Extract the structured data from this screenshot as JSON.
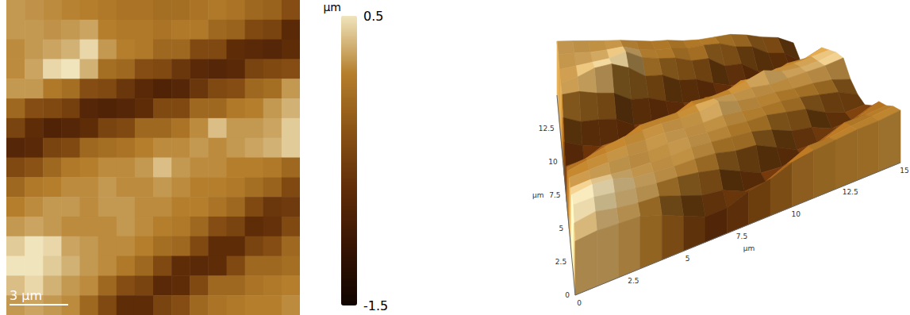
{
  "chart_data": [
    {
      "type": "heatmap",
      "tick_labels": false,
      "xlim": [
        0,
        15
      ],
      "ylim": [
        0,
        15
      ],
      "scale_bar": {
        "value": 3,
        "label": "3 μm"
      },
      "colorbar": {
        "title": "μm",
        "range": [
          -1.5,
          0.5
        ],
        "ticks": [
          0.5,
          -1.5
        ],
        "colors": [
          "#100400",
          "#361403",
          "#5f2c08",
          "#8a5214",
          "#b47e2c",
          "#f0e4bc"
        ]
      },
      "cells": [
        [
          0.2,
          0.18,
          0.15,
          0.12,
          0.1,
          0.05,
          0.0,
          0.0,
          -0.05,
          -0.05,
          0.0,
          0.05,
          0.0,
          -0.1,
          -0.15,
          -0.35
        ],
        [
          0.2,
          0.2,
          0.18,
          0.2,
          0.25,
          0.1,
          0.05,
          0.05,
          0.0,
          0.05,
          0.05,
          -0.1,
          -0.15,
          -0.4,
          -0.45,
          -0.75
        ],
        [
          0.15,
          0.2,
          0.25,
          0.3,
          0.45,
          0.2,
          0.1,
          0.05,
          -0.1,
          -0.1,
          -0.4,
          -0.4,
          -0.7,
          -0.75,
          -0.8,
          -0.7
        ],
        [
          0.15,
          0.25,
          0.45,
          0.5,
          0.3,
          -0.05,
          -0.1,
          -0.35,
          -0.4,
          -0.6,
          -0.75,
          -0.8,
          -0.75,
          -0.45,
          -0.4,
          -0.35
        ],
        [
          0.2,
          0.2,
          0.05,
          -0.05,
          -0.35,
          -0.4,
          -0.6,
          -0.75,
          -0.85,
          -0.8,
          -0.6,
          -0.4,
          -0.35,
          -0.1,
          -0.05,
          0.2
        ],
        [
          -0.1,
          -0.35,
          -0.4,
          -0.5,
          -0.8,
          -0.85,
          -0.8,
          -0.7,
          -0.4,
          -0.4,
          -0.1,
          -0.1,
          0.05,
          0.1,
          0.2,
          0.3
        ],
        [
          -0.45,
          -0.7,
          -0.85,
          -0.8,
          -0.7,
          -0.45,
          -0.4,
          -0.1,
          -0.1,
          0.0,
          0.15,
          0.35,
          0.2,
          0.2,
          0.25,
          0.4
        ],
        [
          -0.8,
          -0.75,
          -0.45,
          -0.4,
          -0.1,
          -0.05,
          0.0,
          0.1,
          0.15,
          0.15,
          0.2,
          0.15,
          0.2,
          0.25,
          0.3,
          0.4
        ],
        [
          -0.4,
          -0.3,
          -0.1,
          0.05,
          0.1,
          0.15,
          0.15,
          0.2,
          0.35,
          0.2,
          0.15,
          0.15,
          0.1,
          0.1,
          0.05,
          -0.1
        ],
        [
          -0.1,
          0.05,
          0.1,
          0.15,
          0.15,
          0.2,
          0.15,
          0.15,
          0.2,
          0.15,
          0.1,
          0.1,
          0.05,
          -0.05,
          -0.15,
          -0.4
        ],
        [
          0.1,
          0.15,
          0.2,
          0.2,
          0.15,
          0.2,
          0.2,
          0.15,
          0.15,
          0.1,
          0.1,
          0.0,
          -0.1,
          -0.4,
          -0.6,
          -0.55
        ],
        [
          0.2,
          0.25,
          0.2,
          0.15,
          0.15,
          0.15,
          0.2,
          0.15,
          0.1,
          0.05,
          -0.1,
          -0.35,
          -0.45,
          -0.7,
          -0.65,
          -0.4
        ],
        [
          0.4,
          0.5,
          0.45,
          0.25,
          0.2,
          0.15,
          0.15,
          0.1,
          -0.05,
          -0.1,
          -0.4,
          -0.7,
          -0.7,
          -0.45,
          -0.35,
          -0.1
        ],
        [
          0.5,
          0.5,
          0.4,
          0.3,
          0.2,
          0.15,
          0.05,
          -0.1,
          -0.4,
          -0.7,
          -0.75,
          -0.7,
          -0.4,
          -0.1,
          -0.1,
          -0.05
        ],
        [
          0.35,
          0.45,
          0.3,
          0.2,
          0.15,
          -0.1,
          -0.35,
          -0.45,
          -0.75,
          -0.7,
          -0.4,
          -0.1,
          -0.1,
          0.0,
          0.05,
          0.1
        ],
        [
          0.2,
          0.25,
          0.2,
          0.15,
          -0.1,
          -0.4,
          -0.7,
          -0.7,
          -0.45,
          -0.35,
          -0.1,
          0.0,
          0.05,
          0.1,
          0.1,
          0.15
        ]
      ]
    },
    {
      "type": "surface",
      "xlim": [
        0,
        15
      ],
      "ylim": [
        0,
        15
      ],
      "xticks": [
        0,
        2.5,
        5,
        7.5,
        10,
        12.5,
        15
      ],
      "yticks": [
        0,
        2.5,
        5,
        7.5,
        10,
        12.5
      ],
      "xlabel": "μm",
      "ylabel": "μm"
    }
  ]
}
